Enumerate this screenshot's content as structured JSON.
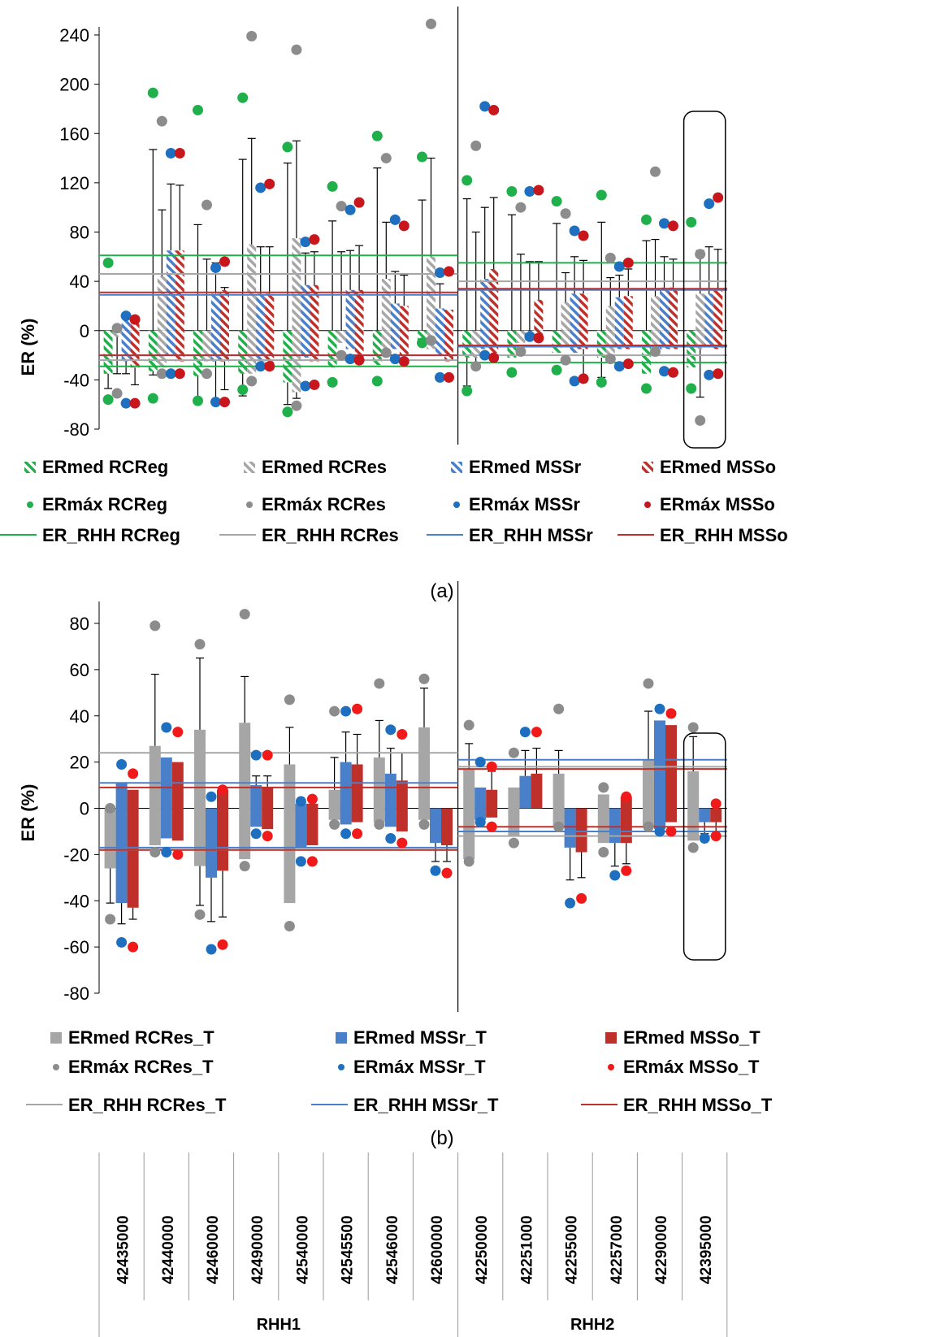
{
  "colors": {
    "RCReg": "#1fb04b",
    "RCRes": "#a6a6a6",
    "RCRes_dot": "#8c8c8c",
    "MSSr": "#4a7fc9",
    "MSSr_dot": "#1f6fc0",
    "MSSo": "#c0302a",
    "MSSo_dot": "#c8161d",
    "MSSo_T_dot": "#f01a1a",
    "axis": "#000000"
  },
  "chart_data": [
    {
      "id": "a",
      "type": "bar",
      "caption": "(a)",
      "ylabel": "ER (%)",
      "ylim": [
        -80,
        240
      ],
      "yticks": [
        -80,
        -40,
        0,
        40,
        80,
        120,
        160,
        200,
        240
      ],
      "categories": [
        "42435000",
        "42440000",
        "42460000",
        "42490000",
        "42540000",
        "42545500",
        "42546000",
        "42600000",
        "42250000",
        "42251000",
        "42255000",
        "42257000",
        "42290000",
        "42395000"
      ],
      "groups": [
        {
          "name": "RHH1",
          "count": 8
        },
        {
          "name": "RHH2",
          "count": 6
        }
      ],
      "highlight_category": "42395000",
      "series": [
        {
          "key": "RCReg",
          "name": "ERmed RCReg",
          "kind": "bar",
          "pattern": "hatch",
          "color": "RCReg",
          "pos": [
            0,
            0,
            0,
            0,
            0,
            0,
            0,
            0,
            0,
            0,
            0,
            0,
            0,
            0
          ],
          "neg": [
            -35,
            -33,
            -37,
            -35,
            -42,
            -30,
            -28,
            -10,
            -22,
            -22,
            -18,
            -22,
            -35,
            -30
          ],
          "err_hi": [
            null,
            147,
            86,
            139,
            136,
            89,
            132,
            106,
            107,
            94,
            87,
            88,
            73,
            null
          ],
          "err_lo": [
            -47,
            -36,
            -58,
            -53,
            -60,
            null,
            null,
            null,
            -45,
            null,
            null,
            -38,
            null,
            null
          ]
        },
        {
          "key": "RCRes",
          "name": "ERmed RCRes",
          "kind": "bar",
          "pattern": "hatch",
          "color": "RCRes",
          "pos": [
            0,
            44,
            0,
            70,
            75,
            0,
            42,
            60,
            0,
            0,
            23,
            20,
            28,
            30
          ],
          "neg": [
            -5,
            -30,
            -25,
            -35,
            -50,
            -10,
            -15,
            -15,
            -22,
            -10,
            -13,
            -20,
            -13,
            -15
          ],
          "err_hi": [
            null,
            98,
            58,
            156,
            154,
            64,
            88,
            140,
            80,
            62,
            47,
            43,
            74,
            65
          ],
          "err_lo": [
            -35,
            null,
            null,
            null,
            -55,
            null,
            null,
            null,
            -28,
            null,
            null,
            null,
            null,
            -54
          ]
        },
        {
          "key": "MSSr",
          "name": "ERmed MSSr",
          "kind": "bar",
          "pattern": "hatch",
          "color": "MSSr",
          "pos": [
            12,
            65,
            30,
            30,
            37,
            33,
            22,
            18,
            42,
            0,
            30,
            27,
            35,
            30
          ],
          "neg": [
            -25,
            -20,
            -25,
            -25,
            -22,
            -15,
            -15,
            -20,
            -15,
            -5,
            -18,
            -15,
            -15,
            -12
          ],
          "err_hi": [
            null,
            119,
            55,
            68,
            63,
            65,
            48,
            38,
            100,
            56,
            60,
            45,
            60,
            68
          ],
          "err_lo": [
            -35,
            null,
            -60,
            null,
            null,
            null,
            null,
            null,
            null,
            null,
            null,
            null,
            null,
            null
          ]
        },
        {
          "key": "MSSo",
          "name": "ERmed MSSo",
          "kind": "bar",
          "pattern": "hatch",
          "color": "MSSo",
          "pos": [
            10,
            65,
            33,
            30,
            37,
            33,
            20,
            17,
            50,
            25,
            30,
            28,
            35,
            33
          ],
          "neg": [
            -30,
            -25,
            -25,
            -28,
            -25,
            -25,
            -20,
            -25,
            -18,
            -5,
            -15,
            -15,
            -15,
            -15
          ],
          "err_hi": [
            null,
            118,
            35,
            68,
            64,
            69,
            45,
            null,
            108,
            56,
            57,
            50,
            58,
            66
          ],
          "err_lo": [
            -44,
            null,
            -48,
            null,
            null,
            null,
            null,
            null,
            null,
            null,
            -38,
            null,
            null,
            null
          ]
        },
        {
          "key": "RCReg",
          "name": "ERmáx RCReg",
          "kind": "max",
          "color": "RCReg",
          "max": [
            55,
            193,
            179,
            189,
            149,
            117,
            158,
            141,
            122,
            113,
            105,
            110,
            90,
            88
          ],
          "min": [
            -56,
            -55,
            -57,
            -48,
            -66,
            -42,
            -41,
            -10,
            -49,
            -34,
            -32,
            -42,
            -47,
            -47
          ]
        },
        {
          "key": "RCRes",
          "name": "ERmáx RCRes",
          "kind": "max",
          "color": "RCRes_dot",
          "max": [
            2,
            170,
            102,
            239,
            228,
            101,
            140,
            249,
            150,
            100,
            95,
            59,
            129,
            62
          ],
          "min": [
            -51,
            -35,
            -35,
            -41,
            -61,
            -20,
            -18,
            -8,
            -29,
            -17,
            -24,
            -23,
            -17,
            -73
          ]
        },
        {
          "key": "MSSr",
          "name": "ERmáx MSSr",
          "kind": "max",
          "color": "MSSr_dot",
          "max": [
            12,
            144,
            51,
            116,
            72,
            98,
            90,
            47,
            182,
            113,
            81,
            52,
            87,
            103
          ],
          "min": [
            -59,
            -35,
            -58,
            -29,
            -45,
            -23,
            -23,
            -38,
            -20,
            -5,
            -41,
            -29,
            -33,
            -36
          ]
        },
        {
          "key": "MSSo",
          "name": "ERmáx MSSo",
          "kind": "max",
          "color": "MSSo_dot",
          "max": [
            9,
            144,
            56,
            119,
            74,
            104,
            85,
            48,
            179,
            114,
            77,
            55,
            85,
            108
          ],
          "min": [
            -59,
            -35,
            -58,
            -29,
            -44,
            -24,
            -25,
            -38,
            -22,
            -6,
            -39,
            -27,
            -34,
            -35
          ]
        },
        {
          "key": "RCReg",
          "name": "ER_RHH  RCReg",
          "kind": "line",
          "color": "RCReg",
          "segments": [
            {
              "upper": 61,
              "lower": -29
            },
            {
              "upper": 55,
              "lower": -26
            }
          ]
        },
        {
          "key": "RCRes",
          "name": "ER_RHH  RCRes",
          "kind": "line",
          "color": "RCRes",
          "segments": [
            {
              "upper": 46,
              "lower": -24
            },
            {
              "upper": 40,
              "lower": -20
            }
          ]
        },
        {
          "key": "MSSr",
          "name": "ER_RHH  MSSr",
          "kind": "line",
          "color": "MSSr",
          "segments": [
            {
              "upper": 29,
              "lower": -20
            },
            {
              "upper": 33,
              "lower": -13
            }
          ]
        },
        {
          "key": "MSSo",
          "name": "ER_RHH  MSSo",
          "kind": "line",
          "color": "MSSo",
          "segments": [
            {
              "upper": 31,
              "lower": -20
            },
            {
              "upper": 34,
              "lower": -12
            }
          ]
        }
      ],
      "legend_rows": [
        [
          "ERmed RCReg",
          "ERmed RCRes",
          "ERmed MSSr",
          "ERmed MSSo"
        ],
        [
          "ERmáx RCReg",
          "ERmáx RCRes",
          "ERmáx MSSr",
          "ERmáx MSSo"
        ],
        [
          "ER_RHH  RCReg",
          "ER_RHH  RCRes",
          "ER_RHH  MSSr",
          "ER_RHH  MSSo"
        ]
      ]
    },
    {
      "id": "b",
      "type": "bar",
      "caption": "(b)",
      "ylabel": "ER (%)",
      "ylim": [
        -80,
        90
      ],
      "yticks": [
        -80,
        -60,
        -40,
        -20,
        0,
        20,
        40,
        60,
        80
      ],
      "categories": [
        "42435000",
        "42440000",
        "42460000",
        "42490000",
        "42540000",
        "42545500",
        "42546000",
        "42600000",
        "42250000",
        "42251000",
        "42255000",
        "42257000",
        "42290000",
        "42395000"
      ],
      "groups": [
        {
          "name": "RHH1",
          "count": 8
        },
        {
          "name": "RHH2",
          "count": 6
        }
      ],
      "highlight_category": "42395000",
      "series": [
        {
          "key": "RCRes_T",
          "name": "ERmed RCRes_T",
          "kind": "bar",
          "pattern": "solid",
          "color": "RCRes",
          "pos": [
            0,
            27,
            34,
            37,
            19,
            8,
            22,
            35,
            17,
            9,
            15,
            6,
            21,
            16
          ],
          "neg": [
            -26,
            -16,
            -25,
            -22,
            -41,
            -5,
            -6,
            -5,
            -22,
            -12,
            -8,
            -15,
            -8,
            -14
          ],
          "err_hi": [
            null,
            58,
            65,
            57,
            35,
            22,
            38,
            52,
            28,
            null,
            25,
            null,
            42,
            31
          ],
          "err_lo": [
            -41,
            null,
            -42,
            null,
            null,
            null,
            null,
            null,
            null,
            null,
            null,
            null,
            null,
            null
          ]
        },
        {
          "key": "MSSr_T",
          "name": "ERmed MSSr_T",
          "kind": "bar",
          "pattern": "solid",
          "color": "MSSr",
          "pos": [
            11,
            22,
            0,
            10,
            2,
            20,
            15,
            0,
            9,
            14,
            0,
            0,
            38,
            0
          ],
          "neg": [
            -41,
            -13,
            -30,
            -8,
            -17,
            -7,
            -8,
            -15,
            -5,
            0,
            -17,
            -15,
            -9,
            -6
          ],
          "err_hi": [
            null,
            null,
            null,
            14,
            null,
            33,
            26,
            null,
            null,
            25,
            null,
            null,
            null,
            null
          ],
          "err_lo": [
            -50,
            null,
            -49,
            null,
            null,
            null,
            null,
            -23,
            null,
            null,
            -31,
            -25,
            null,
            -11
          ]
        },
        {
          "key": "MSSo_T",
          "name": "ERmed MSSo_T",
          "kind": "bar",
          "pattern": "solid",
          "color": "MSSo",
          "pos": [
            8,
            20,
            8,
            9,
            2,
            19,
            12,
            0,
            8,
            15,
            0,
            5,
            36,
            0
          ],
          "neg": [
            -43,
            -14,
            -27,
            -9,
            -16,
            -6,
            -10,
            -16,
            -4,
            0,
            -19,
            -15,
            -6,
            -6
          ],
          "err_hi": [
            null,
            null,
            null,
            14,
            null,
            32,
            24,
            null,
            16,
            26,
            null,
            null,
            null,
            null
          ],
          "err_lo": [
            -48,
            null,
            -47,
            null,
            null,
            null,
            null,
            -23,
            null,
            null,
            -30,
            -24,
            null,
            -10
          ]
        },
        {
          "key": "RCRes_T",
          "name": "ERmáx RCRes_T",
          "kind": "max",
          "color": "RCRes_dot",
          "max": [
            0,
            79,
            71,
            84,
            47,
            42,
            54,
            56,
            36,
            24,
            43,
            9,
            54,
            35
          ],
          "min": [
            -48,
            -19,
            -46,
            -25,
            -51,
            -7,
            -7,
            -7,
            -23,
            -15,
            -8,
            -19,
            -8,
            -17
          ]
        },
        {
          "key": "MSSr_T",
          "name": "ERmáx MSSr_T",
          "kind": "max",
          "color": "MSSr_dot",
          "max": [
            19,
            35,
            5,
            23,
            3,
            42,
            34,
            null,
            20,
            33,
            null,
            null,
            43,
            null
          ],
          "min": [
            -58,
            -19,
            -61,
            -11,
            -23,
            -11,
            -13,
            -27,
            -6,
            null,
            -41,
            -29,
            -10,
            -13
          ]
        },
        {
          "key": "MSSo_T",
          "name": "ERmáx MSSo_T",
          "kind": "max",
          "color": "MSSo_T_dot",
          "max": [
            15,
            33,
            8,
            23,
            4,
            43,
            32,
            null,
            18,
            33,
            null,
            5,
            41,
            2
          ],
          "min": [
            -60,
            -20,
            -59,
            -12,
            -23,
            -11,
            -15,
            -28,
            -8,
            null,
            -39,
            -27,
            -10,
            -12
          ]
        },
        {
          "key": "RCRes_T",
          "name": "ER_RHH  RCRes_T",
          "kind": "line",
          "color": "RCRes",
          "segments": [
            {
              "upper": 24,
              "lower": -18
            },
            {
              "upper": 18,
              "lower": -12
            }
          ]
        },
        {
          "key": "MSSr_T",
          "name": "ER_RHH  MSSr_T",
          "kind": "line",
          "color": "MSSr",
          "segments": [
            {
              "upper": 11,
              "lower": -17
            },
            {
              "upper": 21,
              "lower": -10
            }
          ]
        },
        {
          "key": "MSSo_T",
          "name": "ER_RHH  MSSo_T",
          "kind": "line",
          "color": "MSSo",
          "segments": [
            {
              "upper": 9,
              "lower": -18
            },
            {
              "upper": 17,
              "lower": -8
            }
          ]
        }
      ],
      "legend_rows": [
        [
          "ERmed RCRes_T",
          "ERmed MSSr_T",
          "ERmed MSSo_T"
        ],
        [
          "ERmáx RCRes_T",
          "ERmáx MSSr_T",
          "ERmáx MSSo_T"
        ],
        [
          "ER_RHH  RCRes_T",
          "ER_RHH  MSSr_T",
          "ER_RHH  MSSo_T"
        ]
      ]
    }
  ]
}
